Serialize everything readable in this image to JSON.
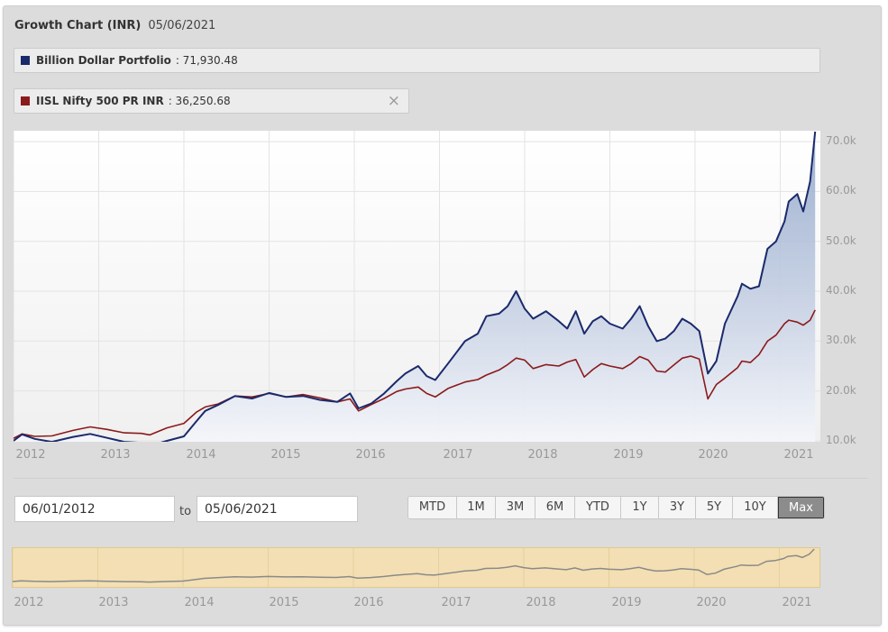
{
  "header": {
    "title": "Growth Chart (INR)",
    "date": "05/06/2021"
  },
  "legend": [
    {
      "name": "Billion Dollar Portfolio",
      "value": ": 71,930.48",
      "color": "#1a2a6c"
    },
    {
      "name": "IISL Nifty 500 PR INR",
      "value": ": 36,250.68",
      "color": "#8b1a1a",
      "close": "×"
    }
  ],
  "range": {
    "from": "06/01/2012",
    "to_label": "to",
    "to": "05/06/2021"
  },
  "buttons": [
    "MTD",
    "1M",
    "3M",
    "6M",
    "YTD",
    "1Y",
    "3Y",
    "5Y",
    "10Y",
    "Max"
  ],
  "active_button": "Max",
  "colors": {
    "portfolio": "#1a2a6c",
    "index": "#8b1a1a",
    "navigator_bg": "#f3dfb3",
    "navigator_line": "#8a8a8a"
  },
  "chart_data": {
    "type": "line",
    "x_labels": [
      "2012",
      "2013",
      "2014",
      "2015",
      "2016",
      "2017",
      "2018",
      "2019",
      "2020",
      "2021"
    ],
    "y_tick_labels": [
      "10.0k",
      "20.0k",
      "30.0k",
      "40.0k",
      "50.0k",
      "60.0k",
      "70.0k"
    ],
    "ylim": [
      10000,
      72000
    ],
    "xlim": [
      2012.0,
      2021.45
    ],
    "grid": true,
    "series": [
      {
        "name": "Billion Dollar Portfolio",
        "color": "#1a2a6c",
        "area": true,
        "points": [
          [
            2012.0,
            10000
          ],
          [
            2012.1,
            11300
          ],
          [
            2012.25,
            10400
          ],
          [
            2012.45,
            9800
          ],
          [
            2012.7,
            10800
          ],
          [
            2012.9,
            11400
          ],
          [
            2013.1,
            10600
          ],
          [
            2013.3,
            9800
          ],
          [
            2013.5,
            9600
          ],
          [
            2013.6,
            9000
          ],
          [
            2013.8,
            10000
          ],
          [
            2014.0,
            10900
          ],
          [
            2014.15,
            14000
          ],
          [
            2014.25,
            16000
          ],
          [
            2014.4,
            17200
          ],
          [
            2014.6,
            19000
          ],
          [
            2014.8,
            18500
          ],
          [
            2015.0,
            19600
          ],
          [
            2015.2,
            18800
          ],
          [
            2015.4,
            19000
          ],
          [
            2015.6,
            18200
          ],
          [
            2015.8,
            17800
          ],
          [
            2015.95,
            19500
          ],
          [
            2016.05,
            16500
          ],
          [
            2016.2,
            17500
          ],
          [
            2016.35,
            19500
          ],
          [
            2016.5,
            22000
          ],
          [
            2016.6,
            23500
          ],
          [
            2016.75,
            25000
          ],
          [
            2016.85,
            23000
          ],
          [
            2016.95,
            22200
          ],
          [
            2017.1,
            25500
          ],
          [
            2017.3,
            30000
          ],
          [
            2017.45,
            31500
          ],
          [
            2017.55,
            35000
          ],
          [
            2017.7,
            35500
          ],
          [
            2017.8,
            37000
          ],
          [
            2017.9,
            40000
          ],
          [
            2018.0,
            36500
          ],
          [
            2018.1,
            34500
          ],
          [
            2018.25,
            36000
          ],
          [
            2018.4,
            34000
          ],
          [
            2018.5,
            32500
          ],
          [
            2018.6,
            36000
          ],
          [
            2018.7,
            31500
          ],
          [
            2018.8,
            34000
          ],
          [
            2018.9,
            35000
          ],
          [
            2019.0,
            33500
          ],
          [
            2019.15,
            32500
          ],
          [
            2019.25,
            34500
          ],
          [
            2019.35,
            37000
          ],
          [
            2019.45,
            33000
          ],
          [
            2019.55,
            30000
          ],
          [
            2019.65,
            30500
          ],
          [
            2019.75,
            32000
          ],
          [
            2019.85,
            34500
          ],
          [
            2019.95,
            33500
          ],
          [
            2020.05,
            32000
          ],
          [
            2020.15,
            23500
          ],
          [
            2020.25,
            26000
          ],
          [
            2020.35,
            33500
          ],
          [
            2020.5,
            39000
          ],
          [
            2020.55,
            41500
          ],
          [
            2020.65,
            40500
          ],
          [
            2020.75,
            41000
          ],
          [
            2020.85,
            48500
          ],
          [
            2020.95,
            50000
          ],
          [
            2021.05,
            54000
          ],
          [
            2021.1,
            58000
          ],
          [
            2021.2,
            59500
          ],
          [
            2021.27,
            56000
          ],
          [
            2021.35,
            62000
          ],
          [
            2021.41,
            72000
          ]
        ]
      },
      {
        "name": "IISL Nifty 500 PR INR",
        "color": "#8b1a1a",
        "area": false,
        "points": [
          [
            2012.0,
            10500
          ],
          [
            2012.1,
            11400
          ],
          [
            2012.25,
            10900
          ],
          [
            2012.45,
            11000
          ],
          [
            2012.7,
            12100
          ],
          [
            2012.9,
            12800
          ],
          [
            2013.1,
            12300
          ],
          [
            2013.3,
            11600
          ],
          [
            2013.5,
            11500
          ],
          [
            2013.6,
            11200
          ],
          [
            2013.8,
            12600
          ],
          [
            2014.0,
            13500
          ],
          [
            2014.15,
            15800
          ],
          [
            2014.25,
            16800
          ],
          [
            2014.4,
            17400
          ],
          [
            2014.6,
            19000
          ],
          [
            2014.8,
            18800
          ],
          [
            2015.0,
            19500
          ],
          [
            2015.2,
            18800
          ],
          [
            2015.4,
            19300
          ],
          [
            2015.6,
            18600
          ],
          [
            2015.8,
            17800
          ],
          [
            2015.95,
            18400
          ],
          [
            2016.05,
            16000
          ],
          [
            2016.2,
            17300
          ],
          [
            2016.35,
            18500
          ],
          [
            2016.5,
            19900
          ],
          [
            2016.6,
            20400
          ],
          [
            2016.75,
            20800
          ],
          [
            2016.85,
            19500
          ],
          [
            2016.95,
            18800
          ],
          [
            2017.1,
            20500
          ],
          [
            2017.3,
            21800
          ],
          [
            2017.45,
            22300
          ],
          [
            2017.55,
            23200
          ],
          [
            2017.7,
            24200
          ],
          [
            2017.8,
            25300
          ],
          [
            2017.9,
            26600
          ],
          [
            2018.0,
            26200
          ],
          [
            2018.1,
            24500
          ],
          [
            2018.25,
            25300
          ],
          [
            2018.4,
            25000
          ],
          [
            2018.5,
            25800
          ],
          [
            2018.6,
            26300
          ],
          [
            2018.7,
            22800
          ],
          [
            2018.8,
            24300
          ],
          [
            2018.9,
            25500
          ],
          [
            2019.0,
            25000
          ],
          [
            2019.15,
            24500
          ],
          [
            2019.25,
            25500
          ],
          [
            2019.35,
            26900
          ],
          [
            2019.45,
            26200
          ],
          [
            2019.55,
            24000
          ],
          [
            2019.65,
            23800
          ],
          [
            2019.75,
            25200
          ],
          [
            2019.85,
            26600
          ],
          [
            2019.95,
            27000
          ],
          [
            2020.05,
            26400
          ],
          [
            2020.15,
            18400
          ],
          [
            2020.25,
            21300
          ],
          [
            2020.35,
            22600
          ],
          [
            2020.5,
            24700
          ],
          [
            2020.55,
            26000
          ],
          [
            2020.65,
            25700
          ],
          [
            2020.75,
            27300
          ],
          [
            2020.85,
            30000
          ],
          [
            2020.95,
            31200
          ],
          [
            2021.05,
            33500
          ],
          [
            2021.1,
            34200
          ],
          [
            2021.2,
            33800
          ],
          [
            2021.27,
            33200
          ],
          [
            2021.35,
            34200
          ],
          [
            2021.41,
            36250
          ]
        ]
      }
    ]
  }
}
